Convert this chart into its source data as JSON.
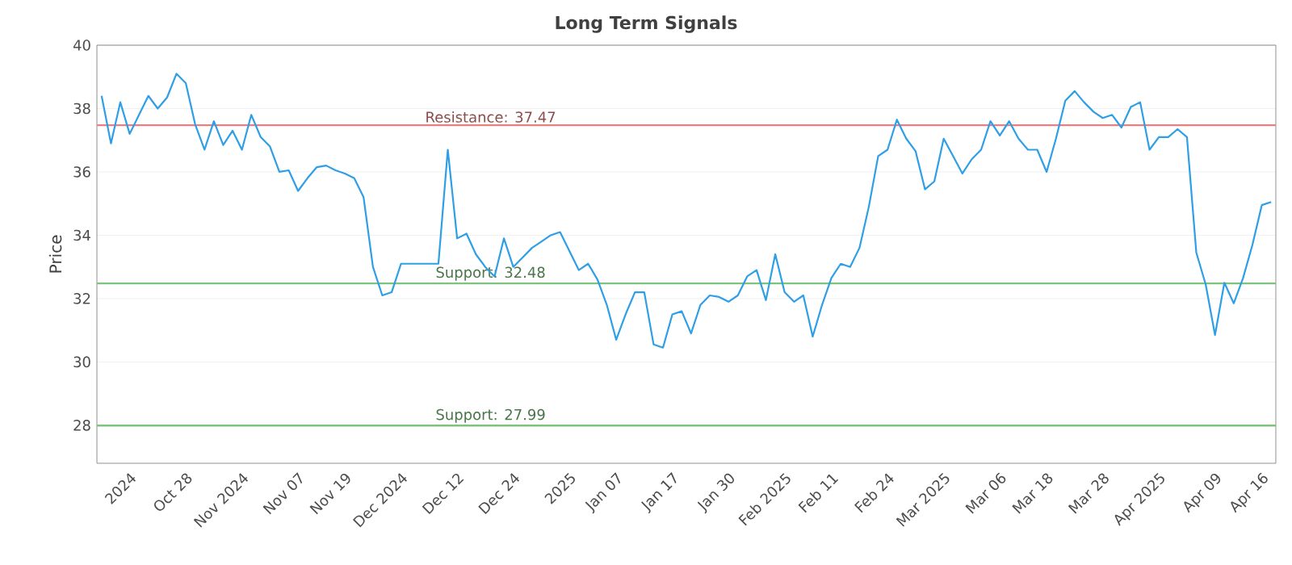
{
  "chart_data": {
    "type": "line",
    "title": "Long Term Signals",
    "ylabel": "Price",
    "categories": [
      null,
      null,
      null,
      "2024",
      null,
      null,
      null,
      null,
      null,
      "Oct 28",
      null,
      null,
      null,
      null,
      null,
      "Nov 2024",
      null,
      null,
      null,
      null,
      null,
      "Nov 07",
      null,
      null,
      null,
      null,
      "Nov 19",
      null,
      null,
      null,
      null,
      null,
      "Dec 2024",
      null,
      null,
      null,
      null,
      null,
      "Dec 12",
      null,
      null,
      null,
      null,
      null,
      "Dec 24",
      null,
      null,
      null,
      null,
      null,
      "2025",
      null,
      null,
      null,
      null,
      "Jan 07",
      null,
      null,
      null,
      null,
      null,
      "Jan 17",
      null,
      null,
      null,
      null,
      null,
      "Jan 30",
      null,
      null,
      null,
      null,
      null,
      "Feb 2025",
      null,
      null,
      null,
      null,
      "Feb 11",
      null,
      null,
      null,
      null,
      null,
      "Feb 24",
      null,
      null,
      null,
      null,
      null,
      "Mar 2025",
      null,
      null,
      null,
      null,
      null,
      "Mar 06",
      null,
      null,
      null,
      null,
      "Mar 18",
      null,
      null,
      null,
      null,
      null,
      "Mar 28",
      null,
      null,
      null,
      null,
      null,
      "Apr 2025",
      null,
      null,
      null,
      null,
      null,
      "Apr 09",
      null,
      null,
      null,
      null,
      "Apr 16",
      null
    ],
    "series": [
      {
        "color": "#2e9fe6",
        "values": [
          38.4,
          36.9,
          38.2,
          37.2,
          37.8,
          38.4,
          38.0,
          38.35,
          39.1,
          38.8,
          37.5,
          36.7,
          37.6,
          36.85,
          37.3,
          36.7,
          37.8,
          37.1,
          36.8,
          36.0,
          36.05,
          35.4,
          35.8,
          36.15,
          36.2,
          36.05,
          35.95,
          35.8,
          35.2,
          33.0,
          32.1,
          32.2,
          33.1,
          33.1,
          33.1,
          33.1,
          33.1,
          36.7,
          33.9,
          34.05,
          33.4,
          33.0,
          32.7,
          33.9,
          33.0,
          33.3,
          33.6,
          33.8,
          34.0,
          34.1,
          33.5,
          32.9,
          33.1,
          32.6,
          31.8,
          30.7,
          31.5,
          32.2,
          32.2,
          30.55,
          30.45,
          31.5,
          31.6,
          30.9,
          31.8,
          32.1,
          32.05,
          31.9,
          32.1,
          32.7,
          32.9,
          31.95,
          33.4,
          32.2,
          31.9,
          32.1,
          30.8,
          31.8,
          32.65,
          33.1,
          33.0,
          33.6,
          34.9,
          36.5,
          36.7,
          37.65,
          37.05,
          36.65,
          35.45,
          35.7,
          37.05,
          36.5,
          35.95,
          36.4,
          36.7,
          37.6,
          37.15,
          37.6,
          37.05,
          36.7,
          36.7,
          36.0,
          37.05,
          38.25,
          38.55,
          38.2,
          37.9,
          37.7,
          37.8,
          37.4,
          38.05,
          38.2,
          36.7,
          37.1,
          37.1,
          37.35,
          37.1,
          33.45,
          32.45,
          30.85,
          32.5,
          31.85,
          32.65,
          33.7,
          34.95,
          35.05
        ]
      }
    ],
    "ylim": [
      26.8,
      40
    ],
    "yticks": [
      28,
      30,
      32,
      34,
      36,
      38,
      40
    ],
    "grid": "y",
    "ref_lines": [
      {
        "axis": "y",
        "value": 37.47,
        "label": "Resistance: 37.47",
        "color": "#e88080"
      },
      {
        "axis": "y",
        "value": 32.48,
        "label": "Support: 32.48",
        "color": "#7cc47c"
      },
      {
        "axis": "y",
        "value": 27.99,
        "label": "Support: 27.99",
        "color": "#7cc47c"
      }
    ]
  }
}
